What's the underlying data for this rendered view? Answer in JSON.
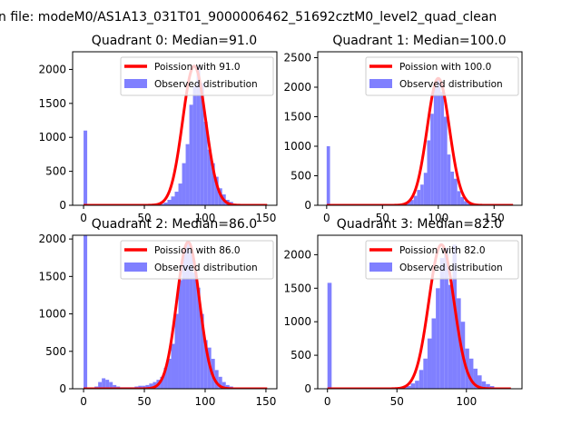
{
  "figure": {
    "suptitle": "n file: modeM0/AS1A13_031T01_9000006462_51692cztM0_level2_quad_clean"
  },
  "colors": {
    "hist": "#8080ff",
    "fit": "#ff0000",
    "axis": "#000000"
  },
  "chart_data": [
    {
      "type": "bar",
      "title": "Quadrant 0: Median=91.0",
      "xlim": [
        -9,
        159
      ],
      "ylim": [
        0,
        2260
      ],
      "xticks": [
        0,
        50,
        100,
        150
      ],
      "yticks": [
        0,
        500,
        1000,
        1500,
        2000
      ],
      "legend": [
        "Poission with 91.0",
        "Observed distribution"
      ],
      "legend_position": "top-right",
      "median": 91.0,
      "peak": 2050,
      "bins": [
        {
          "x": 0,
          "v": 1100
        },
        {
          "x": 3,
          "v": 20
        },
        {
          "x": 63,
          "v": 20
        },
        {
          "x": 66,
          "v": 40
        },
        {
          "x": 69,
          "v": 80
        },
        {
          "x": 72,
          "v": 130
        },
        {
          "x": 75,
          "v": 200
        },
        {
          "x": 78,
          "v": 320
        },
        {
          "x": 81,
          "v": 620
        },
        {
          "x": 84,
          "v": 900
        },
        {
          "x": 87,
          "v": 1480
        },
        {
          "x": 90,
          "v": 1750
        },
        {
          "x": 93,
          "v": 2050
        },
        {
          "x": 96,
          "v": 1800
        },
        {
          "x": 99,
          "v": 1230
        },
        {
          "x": 102,
          "v": 820
        },
        {
          "x": 105,
          "v": 620
        },
        {
          "x": 108,
          "v": 420
        },
        {
          "x": 111,
          "v": 250
        },
        {
          "x": 114,
          "v": 160
        },
        {
          "x": 117,
          "v": 80
        },
        {
          "x": 120,
          "v": 50
        },
        {
          "x": 123,
          "v": 20
        }
      ]
    },
    {
      "type": "bar",
      "title": "Quadrant 1: Median=100.0",
      "xlim": [
        -8,
        175
      ],
      "ylim": [
        0,
        2600
      ],
      "xticks": [
        0,
        50,
        100,
        150
      ],
      "yticks": [
        0,
        500,
        1000,
        1500,
        2000,
        2500
      ],
      "legend": [
        "Poission with 100.0",
        "Observed distribution"
      ],
      "legend_position": "top-right",
      "median": 100.0,
      "peak": 2150,
      "bins": [
        {
          "x": 0,
          "v": 1000
        },
        {
          "x": 3,
          "v": 20
        },
        {
          "x": 69,
          "v": 20
        },
        {
          "x": 72,
          "v": 50
        },
        {
          "x": 75,
          "v": 90
        },
        {
          "x": 78,
          "v": 160
        },
        {
          "x": 81,
          "v": 260
        },
        {
          "x": 84,
          "v": 350
        },
        {
          "x": 87,
          "v": 550
        },
        {
          "x": 90,
          "v": 1100
        },
        {
          "x": 93,
          "v": 1550
        },
        {
          "x": 96,
          "v": 2000
        },
        {
          "x": 99,
          "v": 2150
        },
        {
          "x": 102,
          "v": 1920
        },
        {
          "x": 105,
          "v": 1500
        },
        {
          "x": 108,
          "v": 860
        },
        {
          "x": 111,
          "v": 570
        },
        {
          "x": 114,
          "v": 450
        },
        {
          "x": 117,
          "v": 240
        },
        {
          "x": 120,
          "v": 140
        },
        {
          "x": 123,
          "v": 70
        },
        {
          "x": 126,
          "v": 30
        }
      ]
    },
    {
      "type": "bar",
      "title": "Quadrant 2: Median=86.0",
      "xlim": [
        -9,
        159
      ],
      "ylim": [
        0,
        2050
      ],
      "xticks": [
        0,
        50,
        100,
        150
      ],
      "yticks": [
        0,
        500,
        1000,
        1500,
        2000
      ],
      "legend": [
        "Poission with 86.0",
        "Observed distribution"
      ],
      "legend_position": "top-right",
      "median": 86.0,
      "peak": 1960,
      "bins": [
        {
          "x": 0,
          "v": 2050
        },
        {
          "x": 9,
          "v": 30
        },
        {
          "x": 12,
          "v": 90
        },
        {
          "x": 15,
          "v": 140
        },
        {
          "x": 18,
          "v": 120
        },
        {
          "x": 21,
          "v": 90
        },
        {
          "x": 24,
          "v": 50
        },
        {
          "x": 27,
          "v": 30
        },
        {
          "x": 30,
          "v": 20
        },
        {
          "x": 33,
          "v": 20
        },
        {
          "x": 36,
          "v": 20
        },
        {
          "x": 39,
          "v": 20
        },
        {
          "x": 42,
          "v": 30
        },
        {
          "x": 45,
          "v": 40
        },
        {
          "x": 48,
          "v": 40
        },
        {
          "x": 51,
          "v": 50
        },
        {
          "x": 54,
          "v": 70
        },
        {
          "x": 57,
          "v": 90
        },
        {
          "x": 60,
          "v": 120
        },
        {
          "x": 63,
          "v": 160
        },
        {
          "x": 66,
          "v": 280
        },
        {
          "x": 69,
          "v": 400
        },
        {
          "x": 72,
          "v": 600
        },
        {
          "x": 75,
          "v": 1000
        },
        {
          "x": 78,
          "v": 1450
        },
        {
          "x": 81,
          "v": 1850
        },
        {
          "x": 84,
          "v": 1950
        },
        {
          "x": 87,
          "v": 1850
        },
        {
          "x": 90,
          "v": 1550
        },
        {
          "x": 93,
          "v": 1350
        },
        {
          "x": 96,
          "v": 1000
        },
        {
          "x": 99,
          "v": 650
        },
        {
          "x": 102,
          "v": 550
        },
        {
          "x": 105,
          "v": 400
        },
        {
          "x": 108,
          "v": 250
        },
        {
          "x": 111,
          "v": 160
        },
        {
          "x": 114,
          "v": 90
        },
        {
          "x": 117,
          "v": 50
        },
        {
          "x": 120,
          "v": 30
        }
      ]
    },
    {
      "type": "bar",
      "title": "Quadrant 3: Median=82.0",
      "xlim": [
        -7,
        140
      ],
      "ylim": [
        0,
        2290
      ],
      "xticks": [
        0,
        50,
        100
      ],
      "yticks": [
        0,
        500,
        1000,
        1500,
        2000
      ],
      "legend": [
        "Poission with 82.0",
        "Observed distribution"
      ],
      "legend_position": "top-right",
      "median": 82.0,
      "peak": 2150,
      "bins": [
        {
          "x": 0,
          "v": 1580
        },
        {
          "x": 3,
          "v": 20
        },
        {
          "x": 54,
          "v": 20
        },
        {
          "x": 57,
          "v": 40
        },
        {
          "x": 60,
          "v": 80
        },
        {
          "x": 63,
          "v": 120
        },
        {
          "x": 66,
          "v": 280
        },
        {
          "x": 69,
          "v": 450
        },
        {
          "x": 72,
          "v": 750
        },
        {
          "x": 75,
          "v": 1050
        },
        {
          "x": 78,
          "v": 1500
        },
        {
          "x": 81,
          "v": 1950
        },
        {
          "x": 84,
          "v": 2100
        },
        {
          "x": 87,
          "v": 1550
        },
        {
          "x": 90,
          "v": 2150
        },
        {
          "x": 93,
          "v": 1350
        },
        {
          "x": 96,
          "v": 1000
        },
        {
          "x": 99,
          "v": 600
        },
        {
          "x": 102,
          "v": 450
        },
        {
          "x": 105,
          "v": 300
        },
        {
          "x": 108,
          "v": 200
        },
        {
          "x": 111,
          "v": 110
        },
        {
          "x": 114,
          "v": 70
        },
        {
          "x": 117,
          "v": 40
        },
        {
          "x": 120,
          "v": 20
        }
      ]
    }
  ]
}
